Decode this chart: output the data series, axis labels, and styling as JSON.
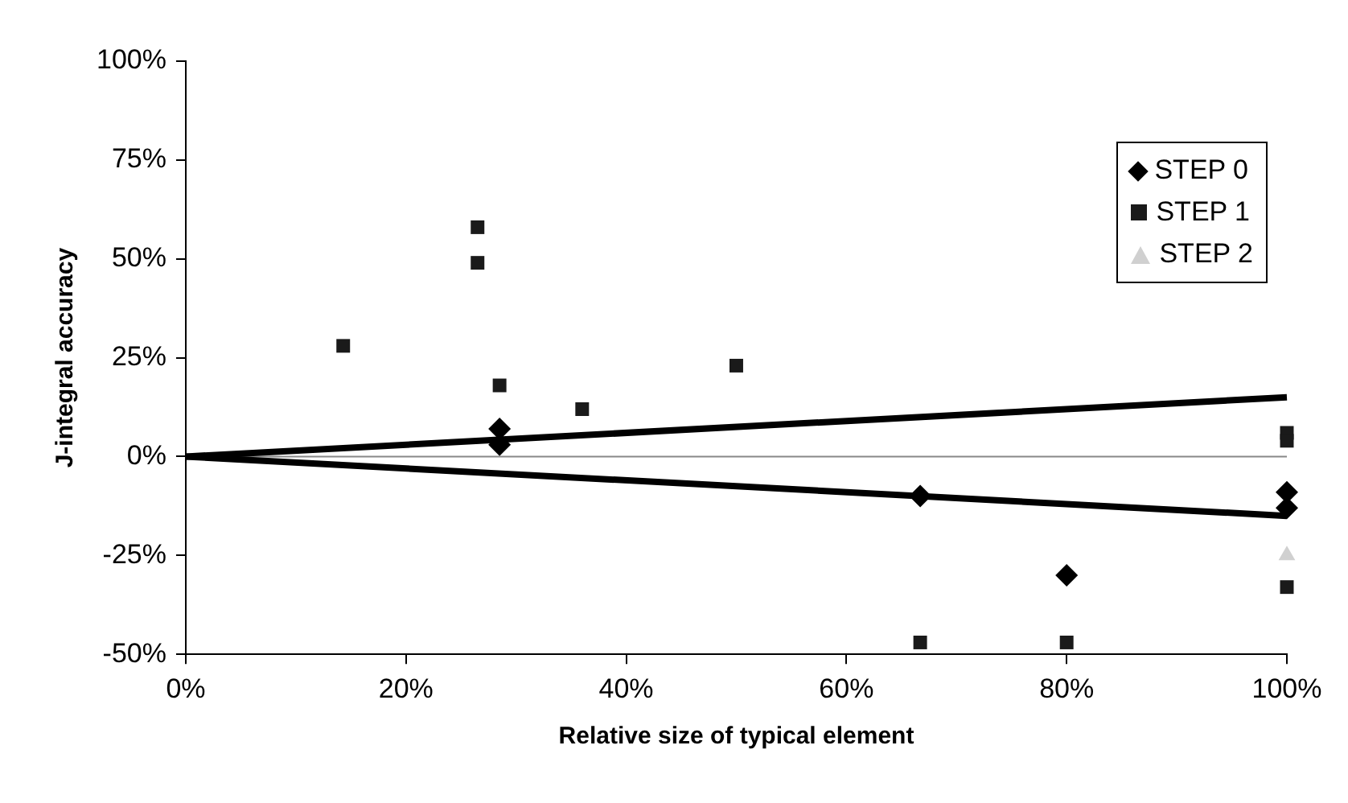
{
  "chart_data": {
    "type": "scatter",
    "xlabel": "Relative size of typical element",
    "ylabel": "J-integral accuracy",
    "xlim": [
      0,
      100
    ],
    "xticks": [
      {
        "value": 0,
        "label": "0%"
      },
      {
        "value": 20,
        "label": "20%"
      },
      {
        "value": 40,
        "label": "40%"
      },
      {
        "value": 60,
        "label": "60%"
      },
      {
        "value": 80,
        "label": "80%"
      },
      {
        "value": 100,
        "label": "100%"
      }
    ],
    "ylim": [
      -50,
      100
    ],
    "yticks": [
      {
        "value": -50,
        "label": "-50%"
      },
      {
        "value": -25,
        "label": "-25%"
      },
      {
        "value": 0,
        "label": "0%"
      },
      {
        "value": 25,
        "label": "25%"
      },
      {
        "value": 50,
        "label": "50%"
      },
      {
        "value": 75,
        "label": "75%"
      },
      {
        "value": 100,
        "label": "100%"
      }
    ],
    "grid": false,
    "legend": "top right",
    "ref_lines": [
      {
        "axis": "y",
        "value": 0,
        "color": "#888888"
      }
    ],
    "series": [
      {
        "name": "STEP 0",
        "color": "#000000",
        "marker": "diamond",
        "x": [
          28.5,
          28.5,
          66.7,
          80,
          100,
          100
        ],
        "values": [
          7,
          3,
          -10,
          -30,
          -9,
          -13
        ]
      },
      {
        "name": "STEP 1",
        "color": "#1a1a1a",
        "marker": "square",
        "x": [
          14.3,
          26.5,
          26.5,
          28.5,
          36,
          50,
          66.7,
          80,
          100,
          100,
          100
        ],
        "values": [
          28,
          58,
          49,
          18,
          12,
          23,
          -47,
          -47,
          6,
          4,
          -33
        ]
      },
      {
        "name": "STEP 2",
        "color": "#d0d0d0",
        "marker": "triangle",
        "x": [
          100
        ],
        "values": [
          -25
        ]
      },
      {
        "type": "line",
        "color": "#000000",
        "marker": "none",
        "x": [
          0,
          100
        ],
        "values": [
          0,
          15
        ]
      },
      {
        "type": "line",
        "color": "#000000",
        "marker": "none",
        "x": [
          0,
          100
        ],
        "values": [
          0,
          -15
        ]
      }
    ]
  }
}
